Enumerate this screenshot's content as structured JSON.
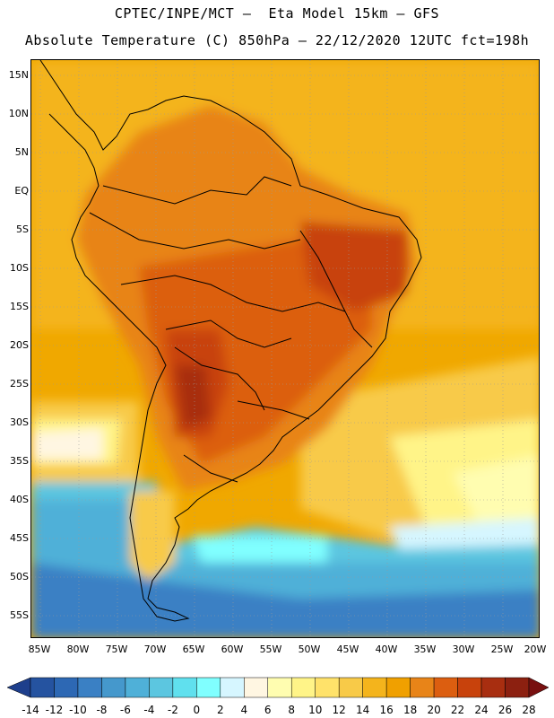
{
  "header": {
    "line1": "CPTEC/INPE/MCT –  Eta Model 15km – GFS",
    "line2": "Absolute Temperature (C) 850hPa – 22/12/2020 12UTC fct=198h"
  },
  "map": {
    "lat_labels": [
      "15N",
      "10N",
      "5N",
      "EQ",
      "5S",
      "10S",
      "15S",
      "20S",
      "25S",
      "30S",
      "35S",
      "40S",
      "45S",
      "50S",
      "55S"
    ],
    "lon_labels": [
      "85W",
      "80W",
      "75W",
      "70W",
      "65W",
      "60W",
      "55W",
      "50W",
      "45W",
      "40W",
      "35W",
      "30W",
      "25W",
      "20W"
    ]
  },
  "colorbar": {
    "labels": [
      "-14",
      "-12",
      "-10",
      "-8",
      "-6",
      "-4",
      "-2",
      "0",
      "2",
      "4",
      "6",
      "8",
      "10",
      "12",
      "14",
      "16",
      "18",
      "20",
      "22",
      "24",
      "26",
      "28"
    ],
    "colors": [
      "#1e3f8c",
      "#2553a0",
      "#2d68b4",
      "#3a80c4",
      "#4598cc",
      "#4fb0d8",
      "#5cc6e0",
      "#60e0ee",
      "#80ffff",
      "#d6f6ff",
      "#fff6e2",
      "#fffdb0",
      "#fff488",
      "#ffe26a",
      "#f8ca48",
      "#f4b41c",
      "#f0a000",
      "#e88418",
      "#dc5e10",
      "#c8420c",
      "#a82e10",
      "#8c2010",
      "#781010"
    ]
  }
}
